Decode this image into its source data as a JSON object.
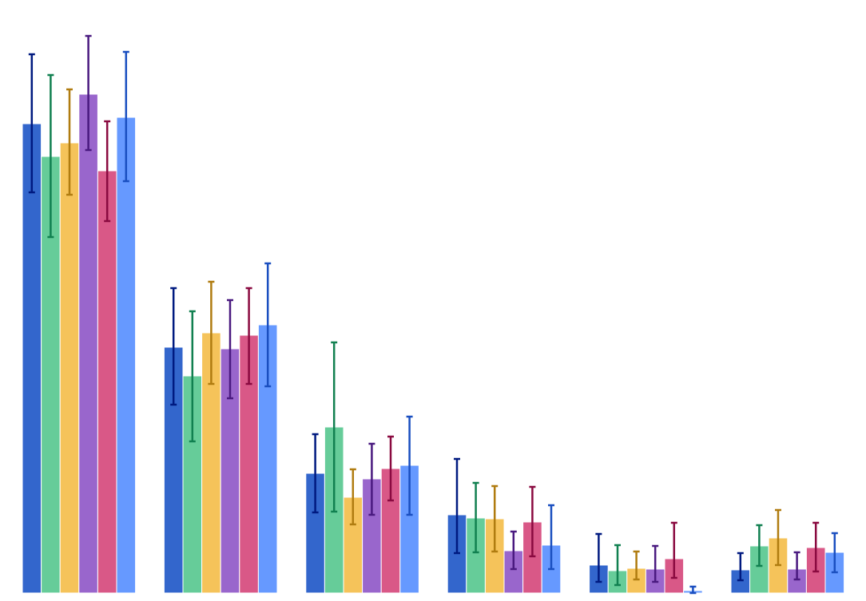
{
  "chart_data": {
    "type": "bar",
    "title": "",
    "xlabel": "",
    "ylabel": "",
    "ylim": [
      0,
      7.43
    ],
    "grid": false,
    "legend": "none",
    "categories": [
      "",
      "",
      "",
      "",
      "",
      ""
    ],
    "error_bars": true,
    "series": [
      {
        "color": "#3366cc",
        "error_color": "#001a80",
        "values": [
          5.88,
          3.08,
          1.5,
          0.98,
          0.35,
          0.29
        ],
        "upper": [
          6.75,
          3.82,
          1.99,
          1.68,
          0.74,
          0.5
        ],
        "lower": [
          5.02,
          2.36,
          1.01,
          0.5,
          0.14,
          0.16
        ]
      },
      {
        "color": "#66cc99",
        "error_color": "#118050",
        "values": [
          5.47,
          2.72,
          2.08,
          0.94,
          0.28,
          0.59
        ],
        "upper": [
          6.49,
          3.53,
          3.14,
          1.38,
          0.6,
          0.85
        ],
        "lower": [
          4.46,
          1.9,
          1.02,
          0.51,
          0.1,
          0.34
        ]
      },
      {
        "color": "#f5c35a",
        "error_color": "#b07c10",
        "values": [
          5.64,
          3.26,
          1.2,
          0.93,
          0.31,
          0.69
        ],
        "upper": [
          6.31,
          3.9,
          1.55,
          1.34,
          0.52,
          1.04
        ],
        "lower": [
          4.99,
          2.62,
          0.86,
          0.52,
          0.17,
          0.35
        ]
      },
      {
        "color": "#9966cc",
        "error_color": "#4a1a80",
        "values": [
          6.25,
          3.06,
          1.43,
          0.53,
          0.3,
          0.3
        ],
        "upper": [
          6.98,
          3.67,
          1.87,
          0.77,
          0.59,
          0.51
        ],
        "lower": [
          5.55,
          2.44,
          0.98,
          0.3,
          0.14,
          0.17
        ]
      },
      {
        "color": "#d95887",
        "error_color": "#8a0a40",
        "values": [
          5.29,
          3.23,
          1.56,
          0.89,
          0.43,
          0.57
        ],
        "upper": [
          5.91,
          3.82,
          1.96,
          1.33,
          0.88,
          0.88
        ],
        "lower": [
          4.66,
          2.62,
          1.16,
          0.46,
          0.19,
          0.27
        ]
      },
      {
        "color": "#6699ff",
        "error_color": "#1a4fc0",
        "values": [
          5.96,
          3.36,
          1.6,
          0.6,
          0.03,
          0.51
        ],
        "upper": [
          6.78,
          4.13,
          2.21,
          1.1,
          0.08,
          0.75
        ],
        "lower": [
          5.16,
          2.59,
          0.98,
          0.3,
          0.0,
          0.26
        ]
      }
    ]
  }
}
